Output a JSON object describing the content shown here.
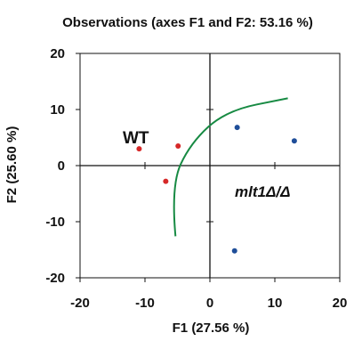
{
  "chart_data": {
    "type": "scatter",
    "title": "Observations (axes F1 and F2: 53.16 %)",
    "xlabel": "F1 (27.56 %)",
    "ylabel": "F2 (25.60 %)",
    "xlim": [
      -20,
      20
    ],
    "ylim": [
      -20,
      20
    ],
    "xticks": [
      "-20",
      "-10",
      "0",
      "10",
      "20"
    ],
    "yticks": [
      "20",
      "10",
      "0",
      "-10",
      "-20"
    ],
    "grid": false,
    "series": [
      {
        "name": "WT",
        "color": "#d62828",
        "points": [
          {
            "x": -10.9,
            "y": 3.0
          },
          {
            "x": -4.9,
            "y": 3.5
          },
          {
            "x": -6.8,
            "y": -2.8
          }
        ]
      },
      {
        "name": "mlt1Δ/Δ",
        "color": "#1f4e99",
        "points": [
          {
            "x": 4.2,
            "y": 6.8
          },
          {
            "x": 13.0,
            "y": 4.4
          },
          {
            "x": 3.8,
            "y": -15.2
          }
        ]
      }
    ],
    "annotations": {
      "wt_label": "WT",
      "mutant_label": "mlt1Δ/Δ",
      "wt_color": "#111111",
      "mutant_color": "#111111",
      "separator_color": "#178a43",
      "separator_curve": [
        {
          "x": -5.3,
          "y": -12.6
        },
        {
          "x": -6.0,
          "y": -3.5
        },
        {
          "x": -3.0,
          "y": 4.0
        },
        {
          "x": 2.5,
          "y": 9.8
        },
        {
          "x": 12.0,
          "y": 12.0
        }
      ]
    }
  }
}
